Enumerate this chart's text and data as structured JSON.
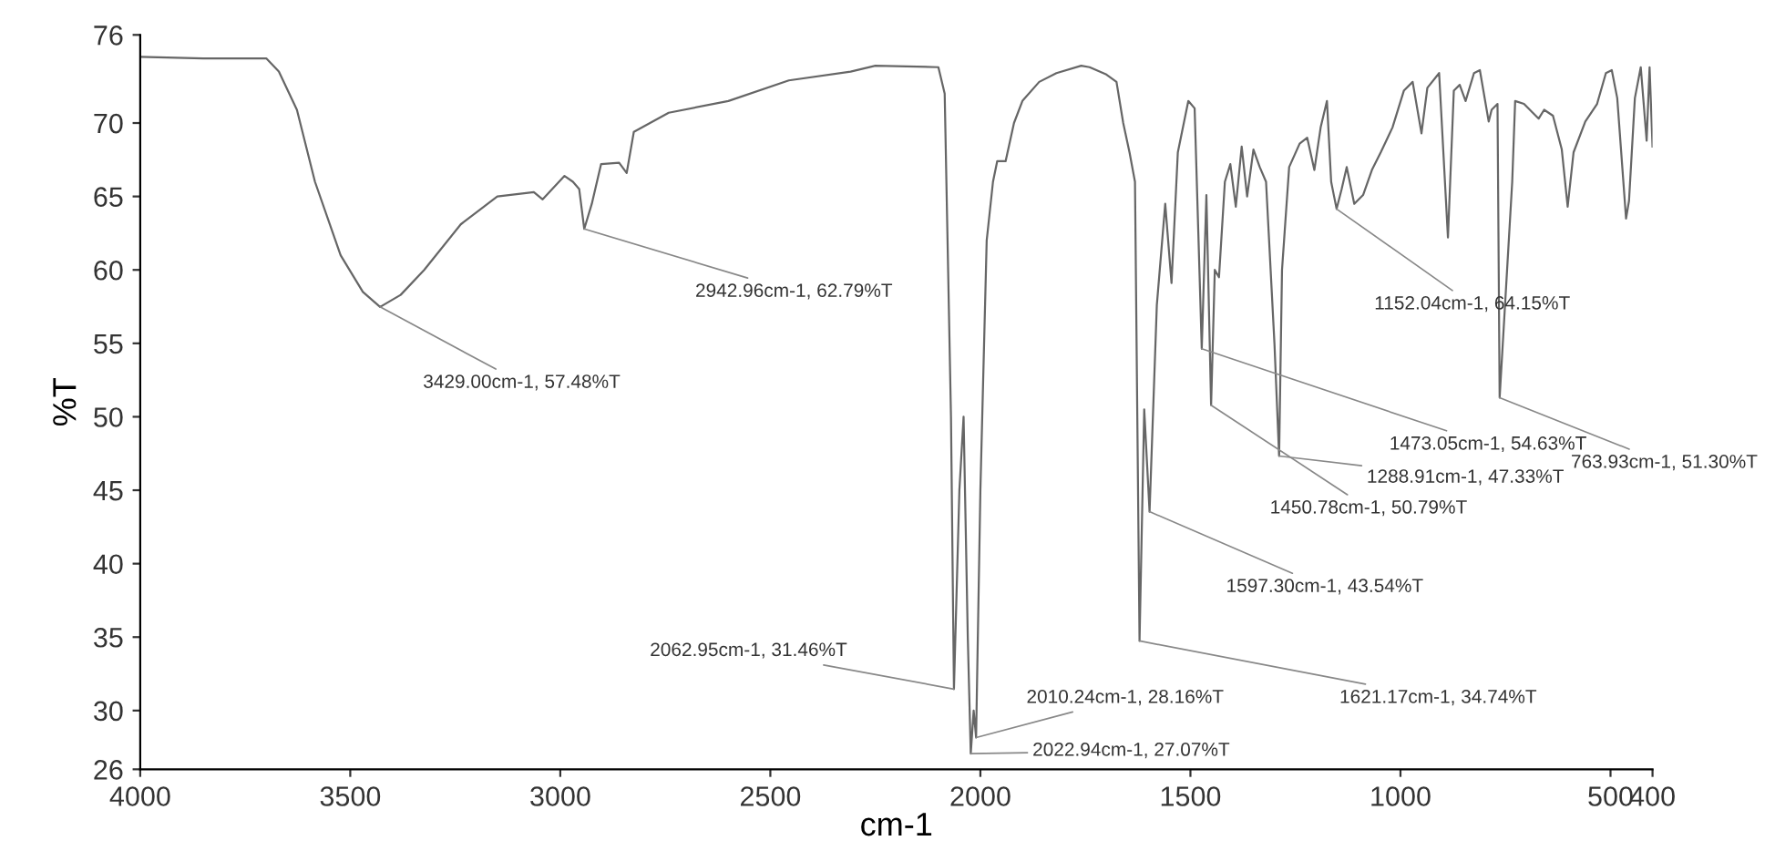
{
  "chart_data": {
    "type": "line",
    "xlabel": "cm-1",
    "ylabel": "%T",
    "xlim": [
      4000,
      400
    ],
    "ylim": [
      26,
      76
    ],
    "xticks": [
      4000,
      3500,
      3000,
      2500,
      2000,
      1500,
      1000,
      500,
      400
    ],
    "yticks": [
      26,
      30,
      35,
      40,
      45,
      50,
      55,
      60,
      65,
      70,
      76
    ],
    "grid": false,
    "legend": false,
    "marker": "none",
    "line_style": "solid",
    "series": [
      {
        "color": "#666666",
        "x": [
          4000,
          3850,
          3700,
          3670,
          3627,
          3584,
          3523,
          3470,
          3429,
          3380,
          3324,
          3237,
          3150,
          3063,
          3042,
          2990,
          2970,
          2955,
          2943,
          2925,
          2903,
          2860,
          2842,
          2825,
          2742,
          2600,
          2456,
          2309,
          2250,
          2100,
          2085,
          2070,
          2062.95,
          2050,
          2040,
          2030,
          2022.94,
          2016,
          2010.24,
          2000,
          1985,
          1970,
          1960,
          1940,
          1920,
          1900,
          1860,
          1819,
          1760,
          1740,
          1700,
          1676,
          1660,
          1645,
          1632,
          1621.17,
          1610,
          1597.3,
          1580,
          1560,
          1545,
          1530,
          1505,
          1490,
          1473.05,
          1462,
          1450.78,
          1442,
          1432,
          1418,
          1405,
          1392,
          1378,
          1365,
          1350,
          1335,
          1320,
          1300,
          1288.91,
          1282,
          1265,
          1240,
          1222,
          1205,
          1190,
          1175,
          1165,
          1158,
          1152.04,
          1140,
          1128,
          1110,
          1089,
          1068,
          1047,
          1019,
          992,
          971,
          950,
          936,
          908,
          887,
          873,
          859,
          845,
          825,
          811,
          790,
          783,
          769,
          763.93,
          734,
          727,
          706,
          685,
          671,
          658,
          637,
          616,
          602,
          588,
          560,
          532,
          511,
          497,
          484,
          463,
          456,
          442,
          428,
          414,
          407,
          400
        ],
        "values": [
          74.5,
          74.4,
          74.4,
          73.5,
          70.9,
          66,
          61,
          58.5,
          57.48,
          58.3,
          60,
          63.1,
          65,
          65.3,
          64.8,
          66.4,
          66,
          65.5,
          62.79,
          64.5,
          67.2,
          67.3,
          66.6,
          69.4,
          70.7,
          71.5,
          72.9,
          73.5,
          73.9,
          73.8,
          72,
          50,
          31.46,
          45,
          50,
          35,
          27.07,
          30,
          28.16,
          45,
          62,
          66,
          67.4,
          67.4,
          70,
          71.5,
          72.8,
          73.4,
          73.9,
          73.8,
          73.3,
          72.8,
          70,
          68,
          66,
          34.74,
          50.5,
          43.54,
          57.6,
          64.5,
          59.1,
          68,
          71.5,
          71,
          54.63,
          65.1,
          50.79,
          60,
          59.5,
          66,
          67.2,
          64.3,
          68.4,
          65,
          68.2,
          67,
          66,
          55,
          47.33,
          60,
          67,
          68.6,
          69,
          66.8,
          69.7,
          71.5,
          66,
          65,
          64.15,
          65.5,
          67,
          64.5,
          65.1,
          66.8,
          68,
          69.7,
          72.2,
          72.8,
          69.3,
          72.4,
          73.4,
          62.2,
          72.2,
          72.6,
          71.5,
          73.4,
          73.6,
          70.1,
          70.9,
          71.3,
          51.3,
          66,
          71.5,
          71.3,
          70.7,
          70.3,
          70.9,
          70.5,
          68.2,
          64.3,
          68,
          70.1,
          71.3,
          73.4,
          73.6,
          71.7,
          63.5,
          64.7,
          71.7,
          73.8,
          68.8,
          73.8,
          68.4
        ]
      }
    ],
    "annotations": [
      {
        "text": "3429.00cm-1, 57.48%T",
        "x": 3429,
        "y": 57.48
      },
      {
        "text": "2942.96cm-1, 62.79%T",
        "x": 2942.96,
        "y": 62.79
      },
      {
        "text": "2062.95cm-1, 31.46%T",
        "x": 2062.95,
        "y": 31.46
      },
      {
        "text": "2010.24cm-1, 28.16%T",
        "x": 2010.24,
        "y": 28.16
      },
      {
        "text": "2022.94cm-1, 27.07%T",
        "x": 2022.94,
        "y": 27.07
      },
      {
        "text": "1621.17cm-1, 34.74%T",
        "x": 1621.17,
        "y": 34.74
      },
      {
        "text": "1597.30cm-1, 43.54%T",
        "x": 1597.3,
        "y": 43.54
      },
      {
        "text": "1450.78cm-1, 50.79%T",
        "x": 1450.78,
        "y": 50.79
      },
      {
        "text": "1473.05cm-1, 54.63%T",
        "x": 1473.05,
        "y": 54.63
      },
      {
        "text": "1288.91cm-1, 47.33%T",
        "x": 1288.91,
        "y": 47.33
      },
      {
        "text": "1152.04cm-1, 64.15%T",
        "x": 1152.04,
        "y": 64.15
      },
      {
        "text": "763.93cm-1, 51.30%T",
        "x": 763.93,
        "y": 51.3
      }
    ]
  }
}
